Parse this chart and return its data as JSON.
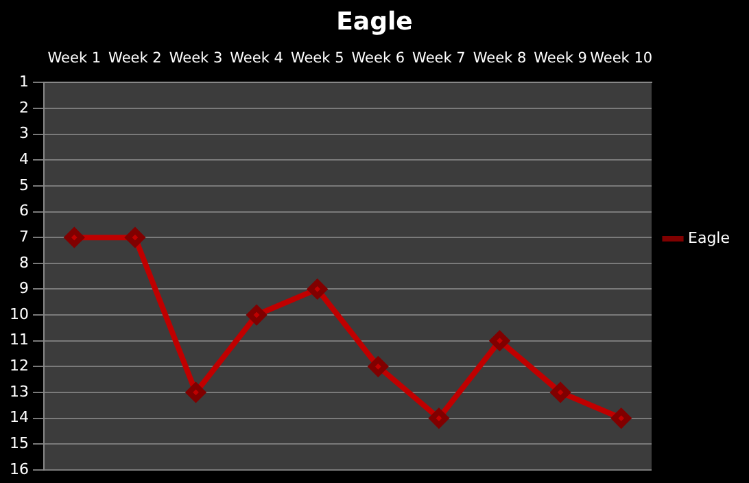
{
  "chart_data": {
    "type": "line",
    "title": "Eagle",
    "categories": [
      "Week 1",
      "Week 2",
      "Week 3",
      "Week 4",
      "Week 5",
      "Week 6",
      "Week 7",
      "Week 8",
      "Week 9",
      "Week 10"
    ],
    "series": [
      {
        "name": "Eagle",
        "color": "#c00000",
        "values": [
          7,
          7,
          13,
          10,
          9,
          12,
          14,
          11,
          13,
          14
        ]
      }
    ],
    "ylim": [
      16,
      1
    ],
    "yticks": [
      1,
      2,
      3,
      4,
      5,
      6,
      7,
      8,
      9,
      10,
      11,
      12,
      13,
      14,
      15,
      16
    ],
    "grid": "y",
    "legend": "right",
    "marker": "diamond",
    "line_style": "solid"
  }
}
